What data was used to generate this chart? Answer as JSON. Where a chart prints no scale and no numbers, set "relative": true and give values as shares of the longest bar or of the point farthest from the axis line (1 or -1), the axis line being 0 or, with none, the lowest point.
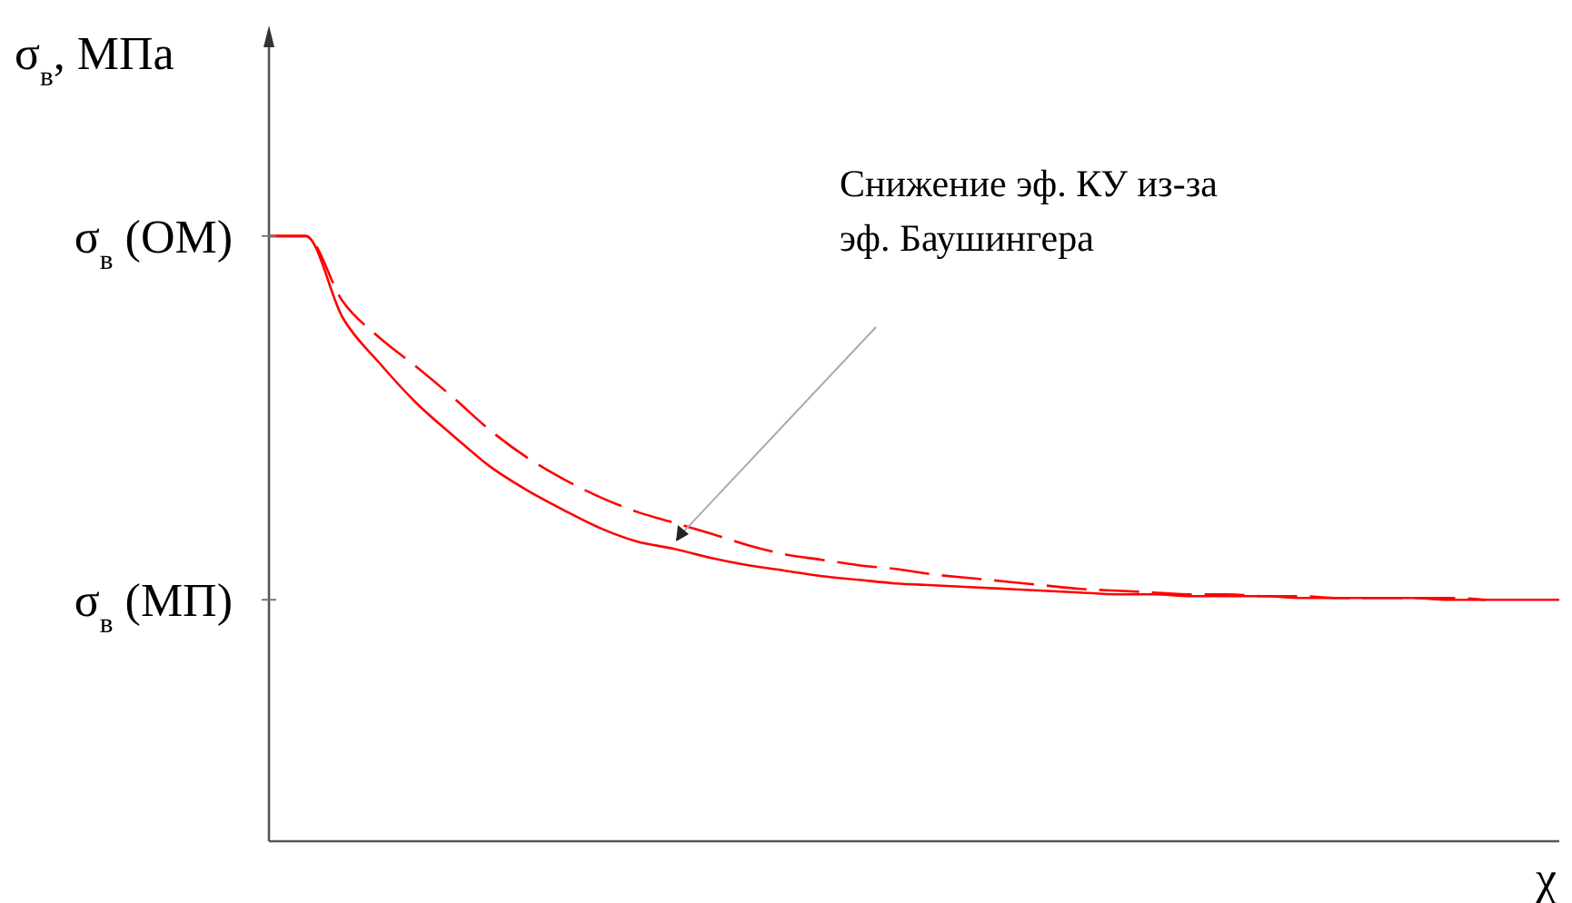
{
  "chart_data": {
    "type": "line",
    "relative": true,
    "ylabel": "σ$_{в}$, МПа",
    "xlabel": "χ",
    "marker": "none",
    "categories": [
      null,
      null,
      null,
      null,
      null,
      null,
      null,
      null,
      null,
      null,
      null,
      null,
      null,
      null,
      null,
      null,
      null,
      null,
      null,
      null,
      null,
      null,
      null,
      null,
      null,
      null,
      null,
      null,
      null,
      null,
      null,
      null,
      null,
      null,
      null,
      null
    ],
    "series": [
      {
        "color": "#ff0000",
        "line_style": "solid",
        "values": [
          1,
          1,
          0.865,
          0.79,
          0.724,
          0.67,
          0.619,
          0.58,
          0.547,
          0.517,
          0.495,
          0.483,
          0.468,
          0.456,
          0.447,
          0.438,
          0.432,
          0.426,
          0.423,
          0.42,
          0.417,
          0.414,
          0.411,
          0.408,
          0.408,
          0.405,
          0.405,
          0.405,
          0.402,
          0.402,
          0.402,
          0.402,
          0.399,
          0.399,
          0.399,
          0.399
        ]
      },
      {
        "color": "#ff0000",
        "line_style": "dashed",
        "values": [
          1,
          1,
          0.892,
          0.832,
          0.784,
          0.733,
          0.679,
          0.634,
          0.598,
          0.568,
          0.544,
          0.526,
          0.508,
          0.489,
          0.474,
          0.465,
          0.456,
          0.45,
          0.441,
          0.435,
          0.429,
          0.423,
          0.417,
          0.414,
          0.411,
          0.408,
          0.408,
          0.405,
          0.405,
          0.402,
          0.402,
          0.402,
          0.402,
          0.399,
          null,
          null
        ]
      }
    ],
    "ref_lines": [
      {
        "axis": "y",
        "value": 1,
        "label": "σ$_{в}$ (ОМ)"
      },
      {
        "axis": "y",
        "value": 0.399,
        "label": "σ$_{в}$ (МП)"
      }
    ],
    "annotations": [
      "Снижение эф. КУ из-за\nэф. Баушингера"
    ]
  }
}
